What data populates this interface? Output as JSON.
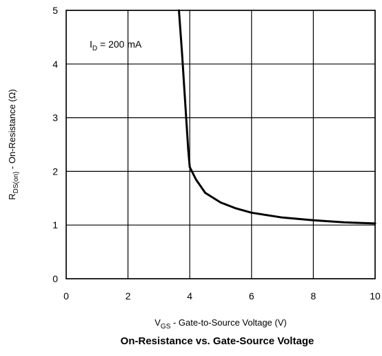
{
  "chart_data": {
    "type": "line",
    "title": "On-Resistance vs. Gate-Source Voltage",
    "xlabel": {
      "main": "V",
      "sub": "GS",
      "rest": " - Gate-to-Source Voltage (V)"
    },
    "ylabel": {
      "main": "R",
      "sub": "DS(on)",
      "rest": " - On-Resistance (Ω)"
    },
    "annotation": {
      "main": "I",
      "sub": "D",
      "rest": " = 200 mA"
    },
    "xlim": [
      0,
      10
    ],
    "ylim": [
      0,
      5
    ],
    "xticks": [
      0,
      2,
      4,
      6,
      8,
      10
    ],
    "yticks": [
      0,
      1,
      2,
      3,
      4,
      5
    ],
    "grid": true,
    "series": [
      {
        "x": [
          3.65,
          3.75,
          3.85,
          3.95,
          4.0,
          4.2,
          4.5,
          5.0,
          5.5,
          6.0,
          7.0,
          8.0,
          9.0,
          10.0
        ],
        "y": [
          5.0,
          4.2,
          3.3,
          2.4,
          2.08,
          1.85,
          1.6,
          1.42,
          1.31,
          1.23,
          1.14,
          1.09,
          1.05,
          1.03
        ]
      }
    ]
  }
}
